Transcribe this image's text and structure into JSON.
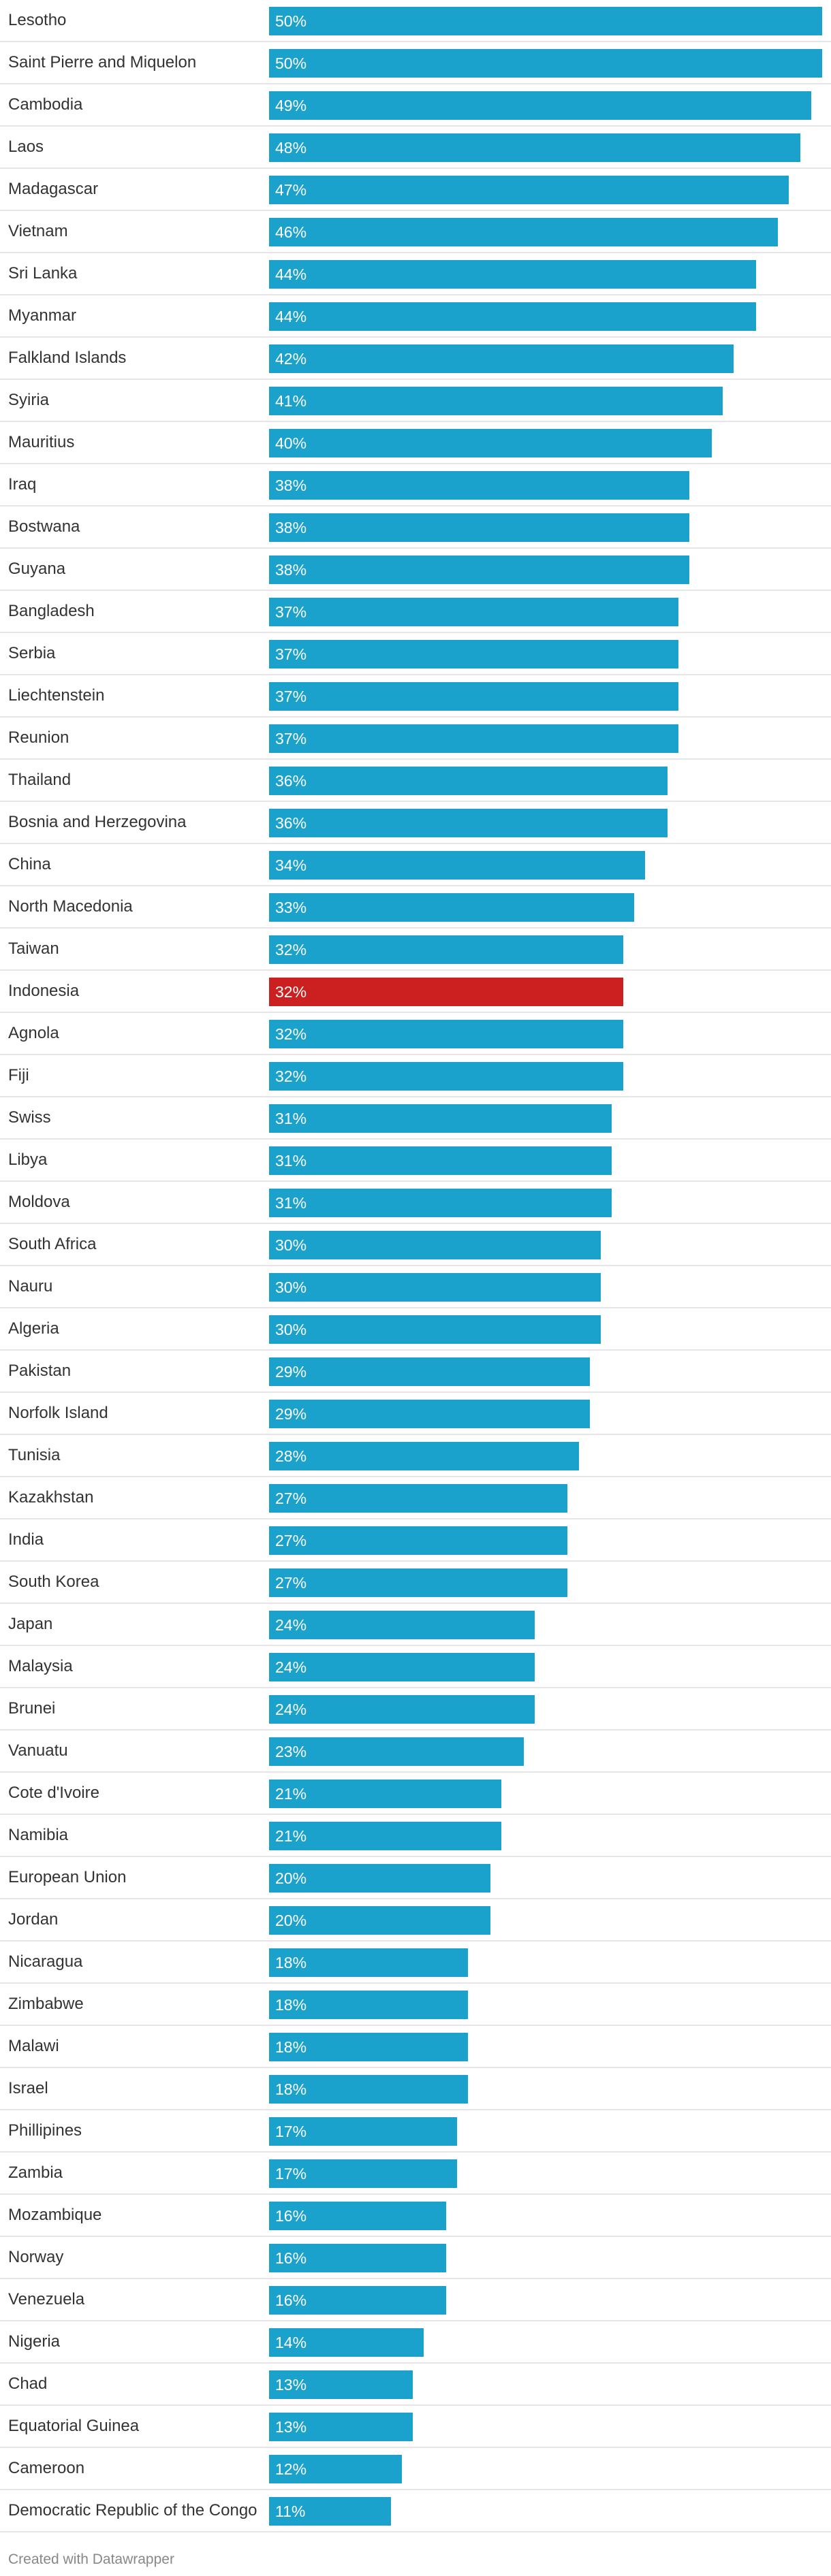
{
  "chart_data": {
    "type": "bar",
    "orientation": "horizontal",
    "value_suffix": "%",
    "xlim": [
      0,
      50
    ],
    "default_color": "#1aa1cc",
    "highlight_color": "#cc1f1f",
    "highlight": "Indonesia",
    "categories": [
      "Lesotho",
      "Saint Pierre and Miquelon",
      "Cambodia",
      "Laos",
      "Madagascar",
      "Vietnam",
      "Sri Lanka",
      "Myanmar",
      "Falkland Islands",
      "Syiria",
      "Mauritius",
      "Iraq",
      "Bostwana",
      "Guyana",
      "Bangladesh",
      "Serbia",
      "Liechtenstein",
      "Reunion",
      "Thailand",
      "Bosnia and Herzegovina",
      "China",
      "North Macedonia",
      "Taiwan",
      "Indonesia",
      "Agnola",
      "Fiji",
      "Swiss",
      "Libya",
      "Moldova",
      "South Africa",
      "Nauru",
      "Algeria",
      "Pakistan",
      "Norfolk Island",
      "Tunisia",
      "Kazakhstan",
      "India",
      "South Korea",
      "Japan",
      "Malaysia",
      "Brunei",
      "Vanuatu",
      "Cote d'Ivoire",
      "Namibia",
      "European Union",
      "Jordan",
      "Nicaragua",
      "Zimbabwe",
      "Malawi",
      "Israel",
      "Phillipines",
      "Zambia",
      "Mozambique",
      "Norway",
      "Venezuela",
      "Nigeria",
      "Chad",
      "Equatorial Guinea",
      "Cameroon",
      "Democratic Republic of the Congo"
    ],
    "values": [
      50,
      50,
      49,
      48,
      47,
      46,
      44,
      44,
      42,
      41,
      40,
      38,
      38,
      38,
      37,
      37,
      37,
      37,
      36,
      36,
      34,
      33,
      32,
      32,
      32,
      32,
      31,
      31,
      31,
      30,
      30,
      30,
      29,
      29,
      28,
      27,
      27,
      27,
      24,
      24,
      24,
      23,
      21,
      21,
      20,
      20,
      18,
      18,
      18,
      18,
      17,
      17,
      16,
      16,
      16,
      14,
      13,
      13,
      12,
      11
    ]
  },
  "footer": {
    "credit": "Created with Datawrapper"
  }
}
